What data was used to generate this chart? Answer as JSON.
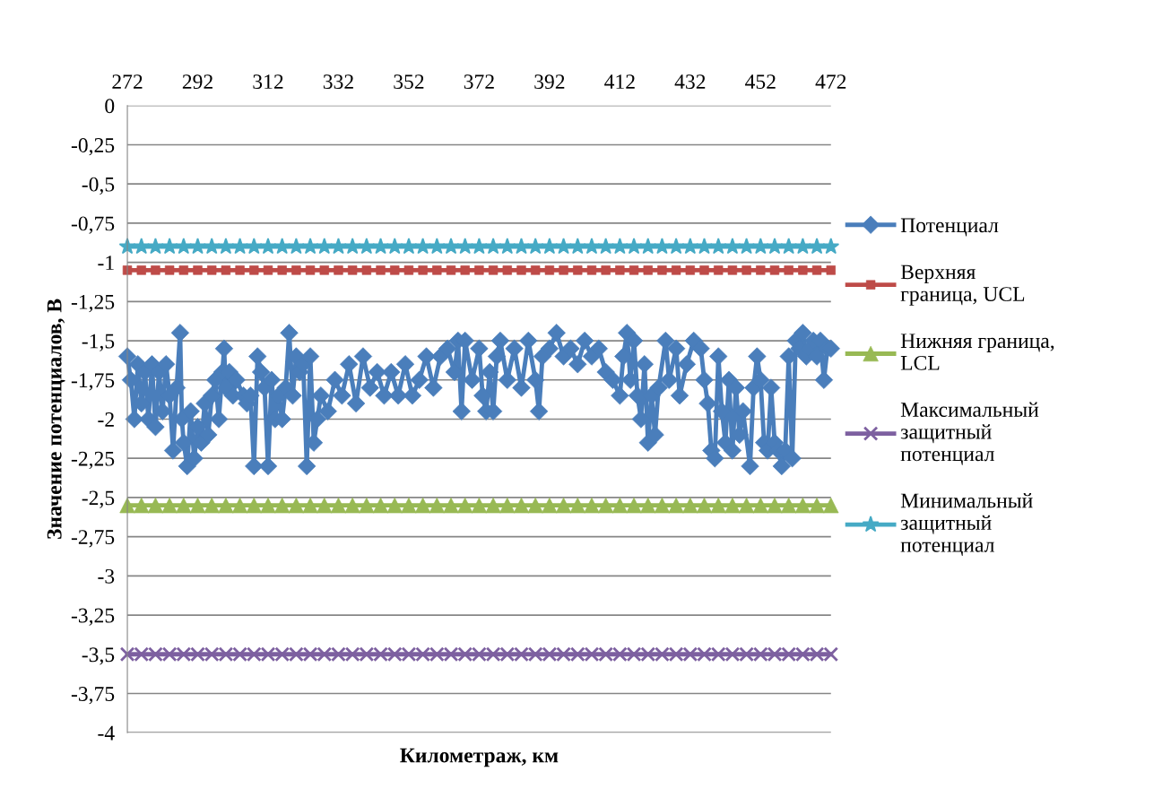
{
  "chart_data": {
    "type": "line",
    "xlabel": "Километраж, км",
    "ylabel": "Значение потенциалов, В",
    "x": [
      272,
      273,
      274,
      275,
      276,
      277,
      278,
      279,
      280,
      281,
      282,
      283,
      284,
      285,
      286,
      287,
      287.5,
      288,
      289,
      290,
      291,
      292,
      293,
      294,
      295,
      296,
      297,
      298,
      299,
      299.5,
      300,
      301,
      302,
      303,
      305,
      306,
      307,
      308,
      309,
      310,
      311,
      312,
      313,
      314,
      315,
      316,
      317,
      318,
      319,
      320,
      321,
      322,
      323,
      324,
      325,
      326,
      327,
      329,
      331,
      333,
      335,
      337,
      339,
      341,
      343,
      345,
      347,
      349,
      351,
      353,
      355,
      357,
      359,
      361,
      363,
      365,
      366,
      367,
      368,
      370,
      372,
      373,
      374,
      375,
      376,
      377,
      378,
      380,
      382,
      384,
      386,
      388,
      389,
      390,
      392,
      394,
      396,
      398,
      400,
      402,
      404,
      406,
      408,
      410,
      412,
      413,
      414,
      415,
      416,
      417,
      418,
      419,
      420,
      421,
      422,
      423,
      425,
      426,
      428,
      429,
      431,
      433,
      435,
      436,
      437,
      438,
      439,
      440,
      441,
      442,
      443,
      444,
      445,
      446,
      447,
      449,
      450,
      451,
      452,
      453,
      454,
      455,
      456,
      457,
      458,
      459,
      460,
      461,
      462,
      463,
      464,
      465,
      466,
      467,
      468,
      469,
      470,
      471,
      472
    ],
    "series": [
      {
        "name": "Потенциал",
        "color": "#4a7ebb",
        "marker": "diamond",
        "values": [
          -1.6,
          -1.75,
          -2.0,
          -1.65,
          -1.9,
          -1.7,
          -2.0,
          -1.65,
          -2.05,
          -1.7,
          -1.95,
          -1.65,
          -1.85,
          -2.2,
          -1.8,
          -1.45,
          -2.0,
          -2.15,
          -2.3,
          -1.95,
          -2.25,
          -2.05,
          -2.15,
          -1.9,
          -2.1,
          -1.85,
          -1.75,
          -2.0,
          -1.7,
          -1.55,
          -1.8,
          -1.7,
          -1.85,
          -1.75,
          -1.85,
          -1.9,
          -1.85,
          -2.3,
          -1.6,
          -1.7,
          -1.8,
          -2.3,
          -1.75,
          -2.0,
          -1.85,
          -2.0,
          -1.8,
          -1.45,
          -1.85,
          -1.6,
          -1.7,
          -1.65,
          -2.3,
          -1.6,
          -2.15,
          -2.0,
          -1.85,
          -1.95,
          -1.75,
          -1.85,
          -1.65,
          -1.9,
          -1.6,
          -1.8,
          -1.7,
          -1.85,
          -1.7,
          -1.85,
          -1.65,
          -1.85,
          -1.75,
          -1.6,
          -1.8,
          -1.6,
          -1.55,
          -1.7,
          -1.5,
          -1.95,
          -1.5,
          -1.75,
          -1.55,
          -1.85,
          -1.95,
          -1.7,
          -1.95,
          -1.6,
          -1.5,
          -1.75,
          -1.55,
          -1.8,
          -1.5,
          -1.75,
          -1.95,
          -1.6,
          -1.55,
          -1.45,
          -1.6,
          -1.55,
          -1.65,
          -1.5,
          -1.6,
          -1.55,
          -1.7,
          -1.75,
          -1.85,
          -1.6,
          -1.45,
          -1.75,
          -1.5,
          -1.85,
          -2.0,
          -1.65,
          -2.15,
          -1.85,
          -2.1,
          -1.8,
          -1.5,
          -1.75,
          -1.55,
          -1.85,
          -1.65,
          -1.5,
          -1.55,
          -1.75,
          -1.9,
          -2.2,
          -2.25,
          -1.6,
          -1.95,
          -2.15,
          -1.75,
          -2.2,
          -1.8,
          -2.1,
          -1.95,
          -2.3,
          -1.8,
          -1.6,
          -1.75,
          -2.15,
          -2.2,
          -1.8,
          -2.15,
          -2.2,
          -2.3,
          -2.2,
          -1.6,
          -2.25,
          -1.5,
          -1.55,
          -1.45,
          -1.6,
          -1.55,
          -1.5,
          -1.6,
          -1.5,
          -1.75,
          -1.55,
          -1.55
        ]
      },
      {
        "name": "Верхняя\nграница, UCL",
        "color": "#be4b48",
        "marker": "square",
        "x": [
          272,
          276,
          280,
          284,
          288,
          292,
          296,
          300,
          304,
          308,
          312,
          316,
          320,
          324,
          328,
          332,
          336,
          340,
          344,
          348,
          352,
          356,
          360,
          364,
          368,
          372,
          376,
          380,
          384,
          388,
          392,
          396,
          400,
          404,
          408,
          412,
          416,
          420,
          424,
          428,
          432,
          436,
          440,
          444,
          448,
          452,
          456,
          460,
          464,
          468,
          472
        ],
        "values": [
          -1.05,
          -1.05,
          -1.05,
          -1.05,
          -1.05,
          -1.05,
          -1.05,
          -1.05,
          -1.05,
          -1.05,
          -1.05,
          -1.05,
          -1.05,
          -1.05,
          -1.05,
          -1.05,
          -1.05,
          -1.05,
          -1.05,
          -1.05,
          -1.05,
          -1.05,
          -1.05,
          -1.05,
          -1.05,
          -1.05,
          -1.05,
          -1.05,
          -1.05,
          -1.05,
          -1.05,
          -1.05,
          -1.05,
          -1.05,
          -1.05,
          -1.05,
          -1.05,
          -1.05,
          -1.05,
          -1.05,
          -1.05,
          -1.05,
          -1.05,
          -1.05,
          -1.05,
          -1.05,
          -1.05,
          -1.05,
          -1.05,
          -1.05,
          -1.05
        ]
      },
      {
        "name": "Нижняя граница,\nLCL",
        "color": "#98b954",
        "marker": "triangle",
        "x": [
          272,
          276,
          280,
          284,
          288,
          292,
          296,
          300,
          304,
          308,
          312,
          316,
          320,
          324,
          328,
          332,
          336,
          340,
          344,
          348,
          352,
          356,
          360,
          364,
          368,
          372,
          376,
          380,
          384,
          388,
          392,
          396,
          400,
          404,
          408,
          412,
          416,
          420,
          424,
          428,
          432,
          436,
          440,
          444,
          448,
          452,
          456,
          460,
          464,
          468,
          472
        ],
        "values": [
          -2.55,
          -2.55,
          -2.55,
          -2.55,
          -2.55,
          -2.55,
          -2.55,
          -2.55,
          -2.55,
          -2.55,
          -2.55,
          -2.55,
          -2.55,
          -2.55,
          -2.55,
          -2.55,
          -2.55,
          -2.55,
          -2.55,
          -2.55,
          -2.55,
          -2.55,
          -2.55,
          -2.55,
          -2.55,
          -2.55,
          -2.55,
          -2.55,
          -2.55,
          -2.55,
          -2.55,
          -2.55,
          -2.55,
          -2.55,
          -2.55,
          -2.55,
          -2.55,
          -2.55,
          -2.55,
          -2.55,
          -2.55,
          -2.55,
          -2.55,
          -2.55,
          -2.55,
          -2.55,
          -2.55,
          -2.55,
          -2.55,
          -2.55,
          -2.55
        ]
      },
      {
        "name": "Максимальный\nзащитный\nпотенциал",
        "color": "#7d60a0",
        "marker": "cross",
        "x": [
          272,
          276,
          280,
          284,
          288,
          292,
          296,
          300,
          304,
          308,
          312,
          316,
          320,
          324,
          328,
          332,
          336,
          340,
          344,
          348,
          352,
          356,
          360,
          364,
          368,
          372,
          376,
          380,
          384,
          388,
          392,
          396,
          400,
          404,
          408,
          412,
          416,
          420,
          424,
          428,
          432,
          436,
          440,
          444,
          448,
          452,
          456,
          460,
          464,
          468,
          472
        ],
        "values": [
          -3.5,
          -3.5,
          -3.5,
          -3.5,
          -3.5,
          -3.5,
          -3.5,
          -3.5,
          -3.5,
          -3.5,
          -3.5,
          -3.5,
          -3.5,
          -3.5,
          -3.5,
          -3.5,
          -3.5,
          -3.5,
          -3.5,
          -3.5,
          -3.5,
          -3.5,
          -3.5,
          -3.5,
          -3.5,
          -3.5,
          -3.5,
          -3.5,
          -3.5,
          -3.5,
          -3.5,
          -3.5,
          -3.5,
          -3.5,
          -3.5,
          -3.5,
          -3.5,
          -3.5,
          -3.5,
          -3.5,
          -3.5,
          -3.5,
          -3.5,
          -3.5,
          -3.5,
          -3.5,
          -3.5,
          -3.5,
          -3.5,
          -3.5,
          -3.5
        ]
      },
      {
        "name": "Минимальный\nзащитный\nпотенциал",
        "color": "#46aac5",
        "marker": "star",
        "x": [
          272,
          276,
          280,
          284,
          288,
          292,
          296,
          300,
          304,
          308,
          312,
          316,
          320,
          324,
          328,
          332,
          336,
          340,
          344,
          348,
          352,
          356,
          360,
          364,
          368,
          372,
          376,
          380,
          384,
          388,
          392,
          396,
          400,
          404,
          408,
          412,
          416,
          420,
          424,
          428,
          432,
          436,
          440,
          444,
          448,
          452,
          456,
          460,
          464,
          468,
          472
        ],
        "values": [
          -0.9,
          -0.9,
          -0.9,
          -0.9,
          -0.9,
          -0.9,
          -0.9,
          -0.9,
          -0.9,
          -0.9,
          -0.9,
          -0.9,
          -0.9,
          -0.9,
          -0.9,
          -0.9,
          -0.9,
          -0.9,
          -0.9,
          -0.9,
          -0.9,
          -0.9,
          -0.9,
          -0.9,
          -0.9,
          -0.9,
          -0.9,
          -0.9,
          -0.9,
          -0.9,
          -0.9,
          -0.9,
          -0.9,
          -0.9,
          -0.9,
          -0.9,
          -0.9,
          -0.9,
          -0.9,
          -0.9,
          -0.9,
          -0.9,
          -0.9,
          -0.9,
          -0.9,
          -0.9,
          -0.9,
          -0.9,
          -0.9,
          -0.9,
          -0.9
        ]
      }
    ],
    "xlim": [
      272,
      472
    ],
    "xticks": [
      272,
      292,
      312,
      332,
      352,
      372,
      392,
      412,
      432,
      452,
      472
    ],
    "ylim": [
      -4,
      0
    ],
    "yticks": [
      0,
      {
        "value": -0.25,
        "label": "-0,25"
      },
      {
        "value": -0.5,
        "label": "-0,5"
      },
      {
        "value": -0.75,
        "label": "-0,75"
      },
      -1,
      {
        "value": -1.25,
        "label": "-1,25"
      },
      {
        "value": -1.5,
        "label": "-1,5"
      },
      {
        "value": -1.75,
        "label": "-1,75"
      },
      -2,
      {
        "value": -2.25,
        "label": "-2,25"
      },
      {
        "value": -2.5,
        "label": "-2,5"
      },
      {
        "value": -2.75,
        "label": "-2,75"
      },
      -3,
      {
        "value": -3.25,
        "label": "-3,25"
      },
      {
        "value": -3.5,
        "label": "-3,5"
      },
      {
        "value": -3.75,
        "label": "-3,75"
      },
      -4
    ],
    "grid": "y",
    "legend": "right",
    "line_style": "solid"
  }
}
